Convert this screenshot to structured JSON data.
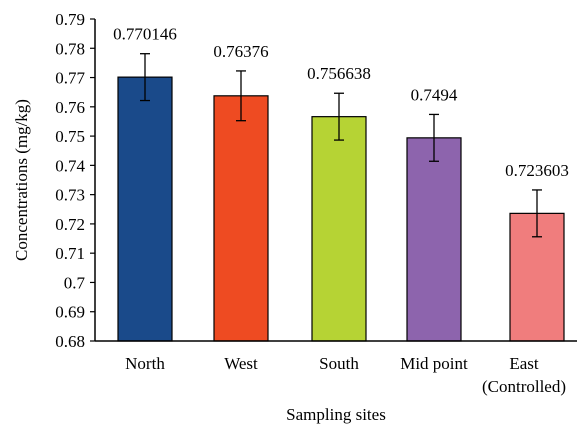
{
  "chart_data": {
    "type": "bar",
    "categories": [
      "North",
      "West",
      "South",
      "Mid point",
      "East\n(Controlled)"
    ],
    "values": [
      0.770146,
      0.76376,
      0.756638,
      0.7494,
      0.723603
    ],
    "data_labels": [
      "0.770146",
      "0.76376",
      "0.756638",
      "0.7494",
      "0.723603"
    ],
    "error": [
      0.008,
      0.0085,
      0.008,
      0.008,
      0.008
    ],
    "colors": [
      "#1a4a8a",
      "#ee4b22",
      "#b6d334",
      "#8d64ad",
      "#f07d7d"
    ],
    "xlabel": "Sampling sites",
    "ylabel": "Concentrations (mg/kg)",
    "ylim": [
      0.68,
      0.79
    ],
    "yticks": [
      0.68,
      0.69,
      0.7,
      0.71,
      0.72,
      0.73,
      0.74,
      0.75,
      0.76,
      0.77,
      0.78,
      0.79
    ],
    "ytick_labels": [
      "0.68",
      "0.69",
      "0.7",
      "0.71",
      "0.72",
      "0.73",
      "0.74",
      "0.75",
      "0.76",
      "0.77",
      "0.78",
      "0.79"
    ],
    "grid": false,
    "legend": "none"
  }
}
